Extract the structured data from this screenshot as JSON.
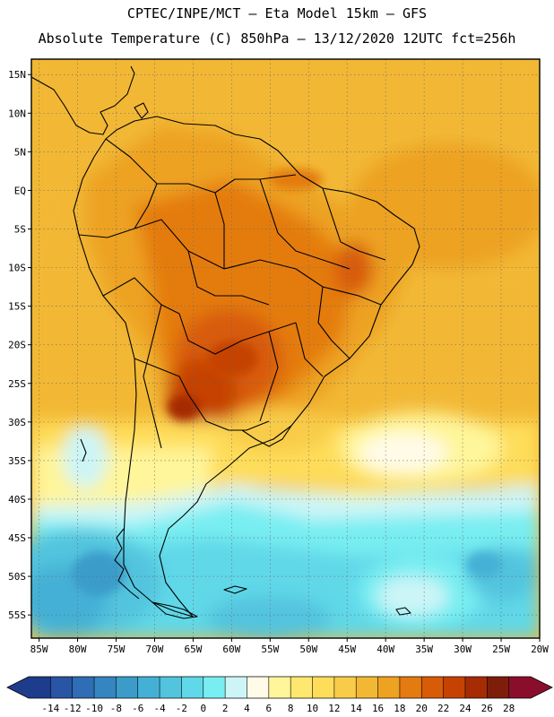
{
  "header": {
    "line1": "CPTEC/INPE/MCT –  Eta Model 15km – GFS",
    "line2": "Absolute Temperature (C) 850hPa – 13/12/2020 12UTC fct=256h"
  },
  "axes": {
    "lat_labels": [
      "15N",
      "10N",
      "5N",
      "EQ",
      "5S",
      "10S",
      "15S",
      "20S",
      "25S",
      "30S",
      "35S",
      "40S",
      "45S",
      "50S",
      "55S"
    ],
    "lat_values": [
      15,
      10,
      5,
      0,
      -5,
      -10,
      -15,
      -20,
      -25,
      -30,
      -35,
      -40,
      -45,
      -50,
      -55
    ],
    "lon_labels": [
      "85W",
      "80W",
      "75W",
      "70W",
      "65W",
      "60W",
      "55W",
      "50W",
      "45W",
      "40W",
      "35W",
      "30W",
      "25W",
      "20W"
    ],
    "lon_values": [
      -85,
      -80,
      -75,
      -70,
      -65,
      -60,
      -55,
      -50,
      -45,
      -40,
      -35,
      -30,
      -25,
      -20
    ],
    "lat_range": [
      -58,
      17
    ],
    "lon_range": [
      -86,
      -20
    ]
  },
  "legend": {
    "labels": [
      "-14",
      "-12",
      "-10",
      "-8",
      "-6",
      "-4",
      "-2",
      "0",
      "2",
      "4",
      "6",
      "8",
      "10",
      "12",
      "14",
      "16",
      "18",
      "20",
      "22",
      "24",
      "26",
      "28"
    ],
    "colors": [
      "#1e3c8c",
      "#2a55a5",
      "#2f6db5",
      "#3585c0",
      "#3b9cca",
      "#45b0d5",
      "#52c4de",
      "#60d8e8",
      "#78eef2",
      "#cdf5f7",
      "#fffbe8",
      "#fff59a",
      "#ffe870",
      "#fedd5a",
      "#f8cc48",
      "#f2b834",
      "#eda222",
      "#e47b10",
      "#d85c08",
      "#c54203",
      "#a52c03",
      "#7e1e0a",
      "#8a0e2c"
    ]
  }
}
